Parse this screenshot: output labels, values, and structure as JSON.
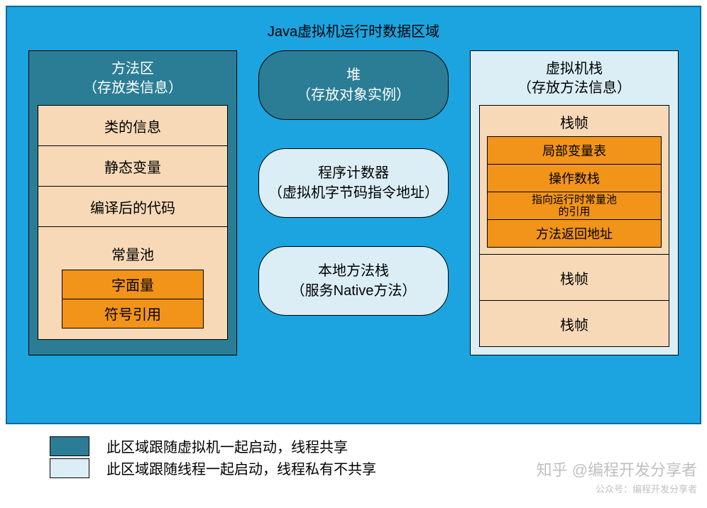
{
  "colors": {
    "outer_bg": "#1ca4e0",
    "outer_border": "#0b6aa0",
    "shared_bg": "#2b7d95",
    "shared_text": "#ffffff",
    "private_bg": "#dbeef5",
    "private_text": "#000000",
    "cell_border": "#000000",
    "peach_bg": "#f7d9b8",
    "orange_bg": "#f2941a",
    "text_dark": "#000000",
    "legend_border": "#000000"
  },
  "title": "Java虚拟机运行时数据区域",
  "left": {
    "header_line1": "方法区",
    "header_line2": "（存放类信息）",
    "cells": [
      "类的信息",
      "静态变量",
      "编译后的代码"
    ],
    "const_pool_title": "常量池",
    "const_pool_items": [
      "字面量",
      "符号引用"
    ]
  },
  "center": {
    "heap": {
      "line1": "堆",
      "line2": "（存放对象实例）"
    },
    "pc": {
      "line1": "程序计数器",
      "line2": "（虚拟机字节码指令地址）"
    },
    "native": {
      "line1": "本地方法栈",
      "line2": "（服务Native方法）"
    }
  },
  "right": {
    "header_line1": "虚拟机栈",
    "header_line2": "（存放方法信息）",
    "frame_title": "栈帧",
    "frame_items": [
      "局部变量表",
      "操作数栈",
      "指向运行时常量池\n的引用",
      "方法返回地址"
    ],
    "extra_frames": [
      "栈帧",
      "栈帧"
    ]
  },
  "legend": {
    "shared": "此区域跟随虚拟机一起启动，线程共享",
    "private": "此区域跟随线程一起启动，线程私有不共享"
  },
  "watermark": {
    "line1": "知乎 @编程开发分享者",
    "line2": "公众号：编程开发分享者"
  }
}
